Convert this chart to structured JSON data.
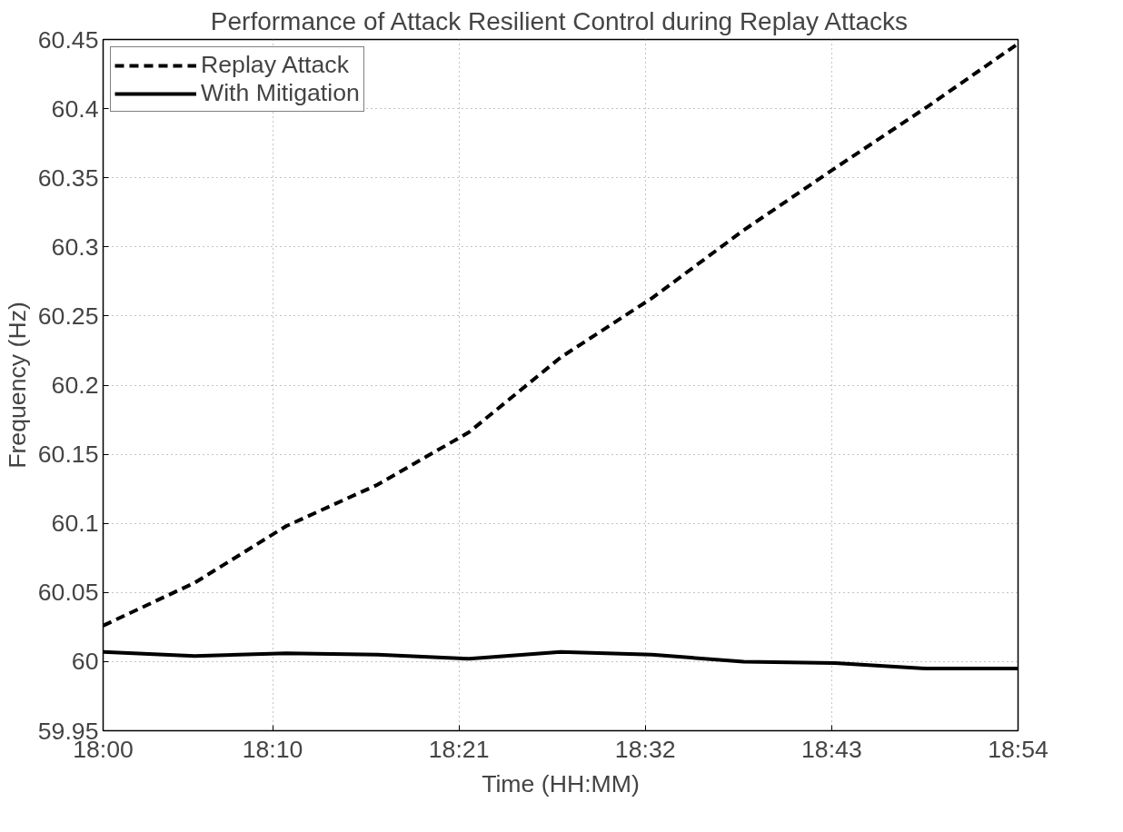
{
  "chart_data": {
    "type": "line",
    "title": "Performance of Attack Resilient Control during Replay Attacks",
    "xlabel": "Time (HH:MM)",
    "ylabel": "Frequency (Hz)",
    "x": [
      18.0,
      18.09,
      18.18,
      18.27,
      18.36,
      18.45,
      18.54,
      18.63,
      18.72,
      18.81,
      18.9
    ],
    "series": [
      {
        "name": "Replay Attack",
        "color": "#000000",
        "line_style": "dashed",
        "values": [
          60.026,
          60.057,
          60.098,
          60.128,
          60.166,
          60.22,
          60.263,
          60.312,
          60.357,
          60.401,
          60.447
        ]
      },
      {
        "name": "With Mitigation",
        "color": "#000000",
        "line_style": "solid",
        "values": [
          60.007,
          60.004,
          60.006,
          60.005,
          60.002,
          60.007,
          60.005,
          60.0,
          59.999,
          59.995,
          59.995
        ]
      }
    ],
    "xlim": [
      18.0,
      18.9
    ],
    "xticks": [
      {
        "value": 18.0,
        "label": "18:00"
      },
      {
        "value": 18.1667,
        "label": "18:10"
      },
      {
        "value": 18.35,
        "label": "18:21"
      },
      {
        "value": 18.5333,
        "label": "18:32"
      },
      {
        "value": 18.7167,
        "label": "18:43"
      },
      {
        "value": 18.9,
        "label": "18:54"
      }
    ],
    "ylim": [
      59.95,
      60.45
    ],
    "yticks": [
      59.95,
      60,
      60.05,
      60.1,
      60.15,
      60.2,
      60.25,
      60.3,
      60.35,
      60.4,
      60.45
    ],
    "grid": true,
    "legend": "top left",
    "marker": "none"
  }
}
